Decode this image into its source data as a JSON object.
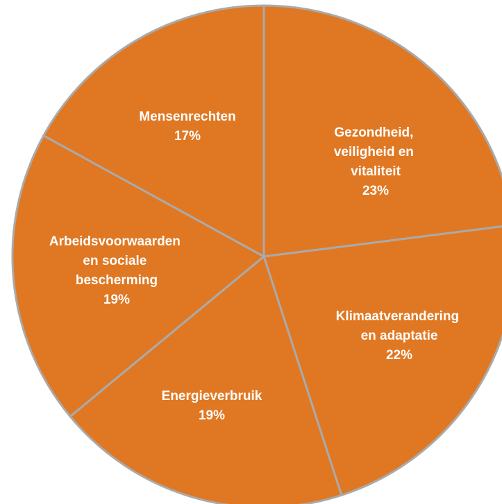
{
  "chart_data": {
    "type": "pie",
    "categories": [
      "Gezondheid, veiligheid en vitaliteit",
      "Klimaatverandering en adaptatie",
      "Energieverbruik",
      "Arbeidsvoorwaarden en sociale bescherming",
      "Mensenrechten"
    ],
    "values": [
      23,
      22,
      19,
      19,
      17
    ],
    "value_labels": [
      "23%",
      "22%",
      "19%",
      "19%",
      "17%"
    ],
    "color": "#e07823"
  }
}
